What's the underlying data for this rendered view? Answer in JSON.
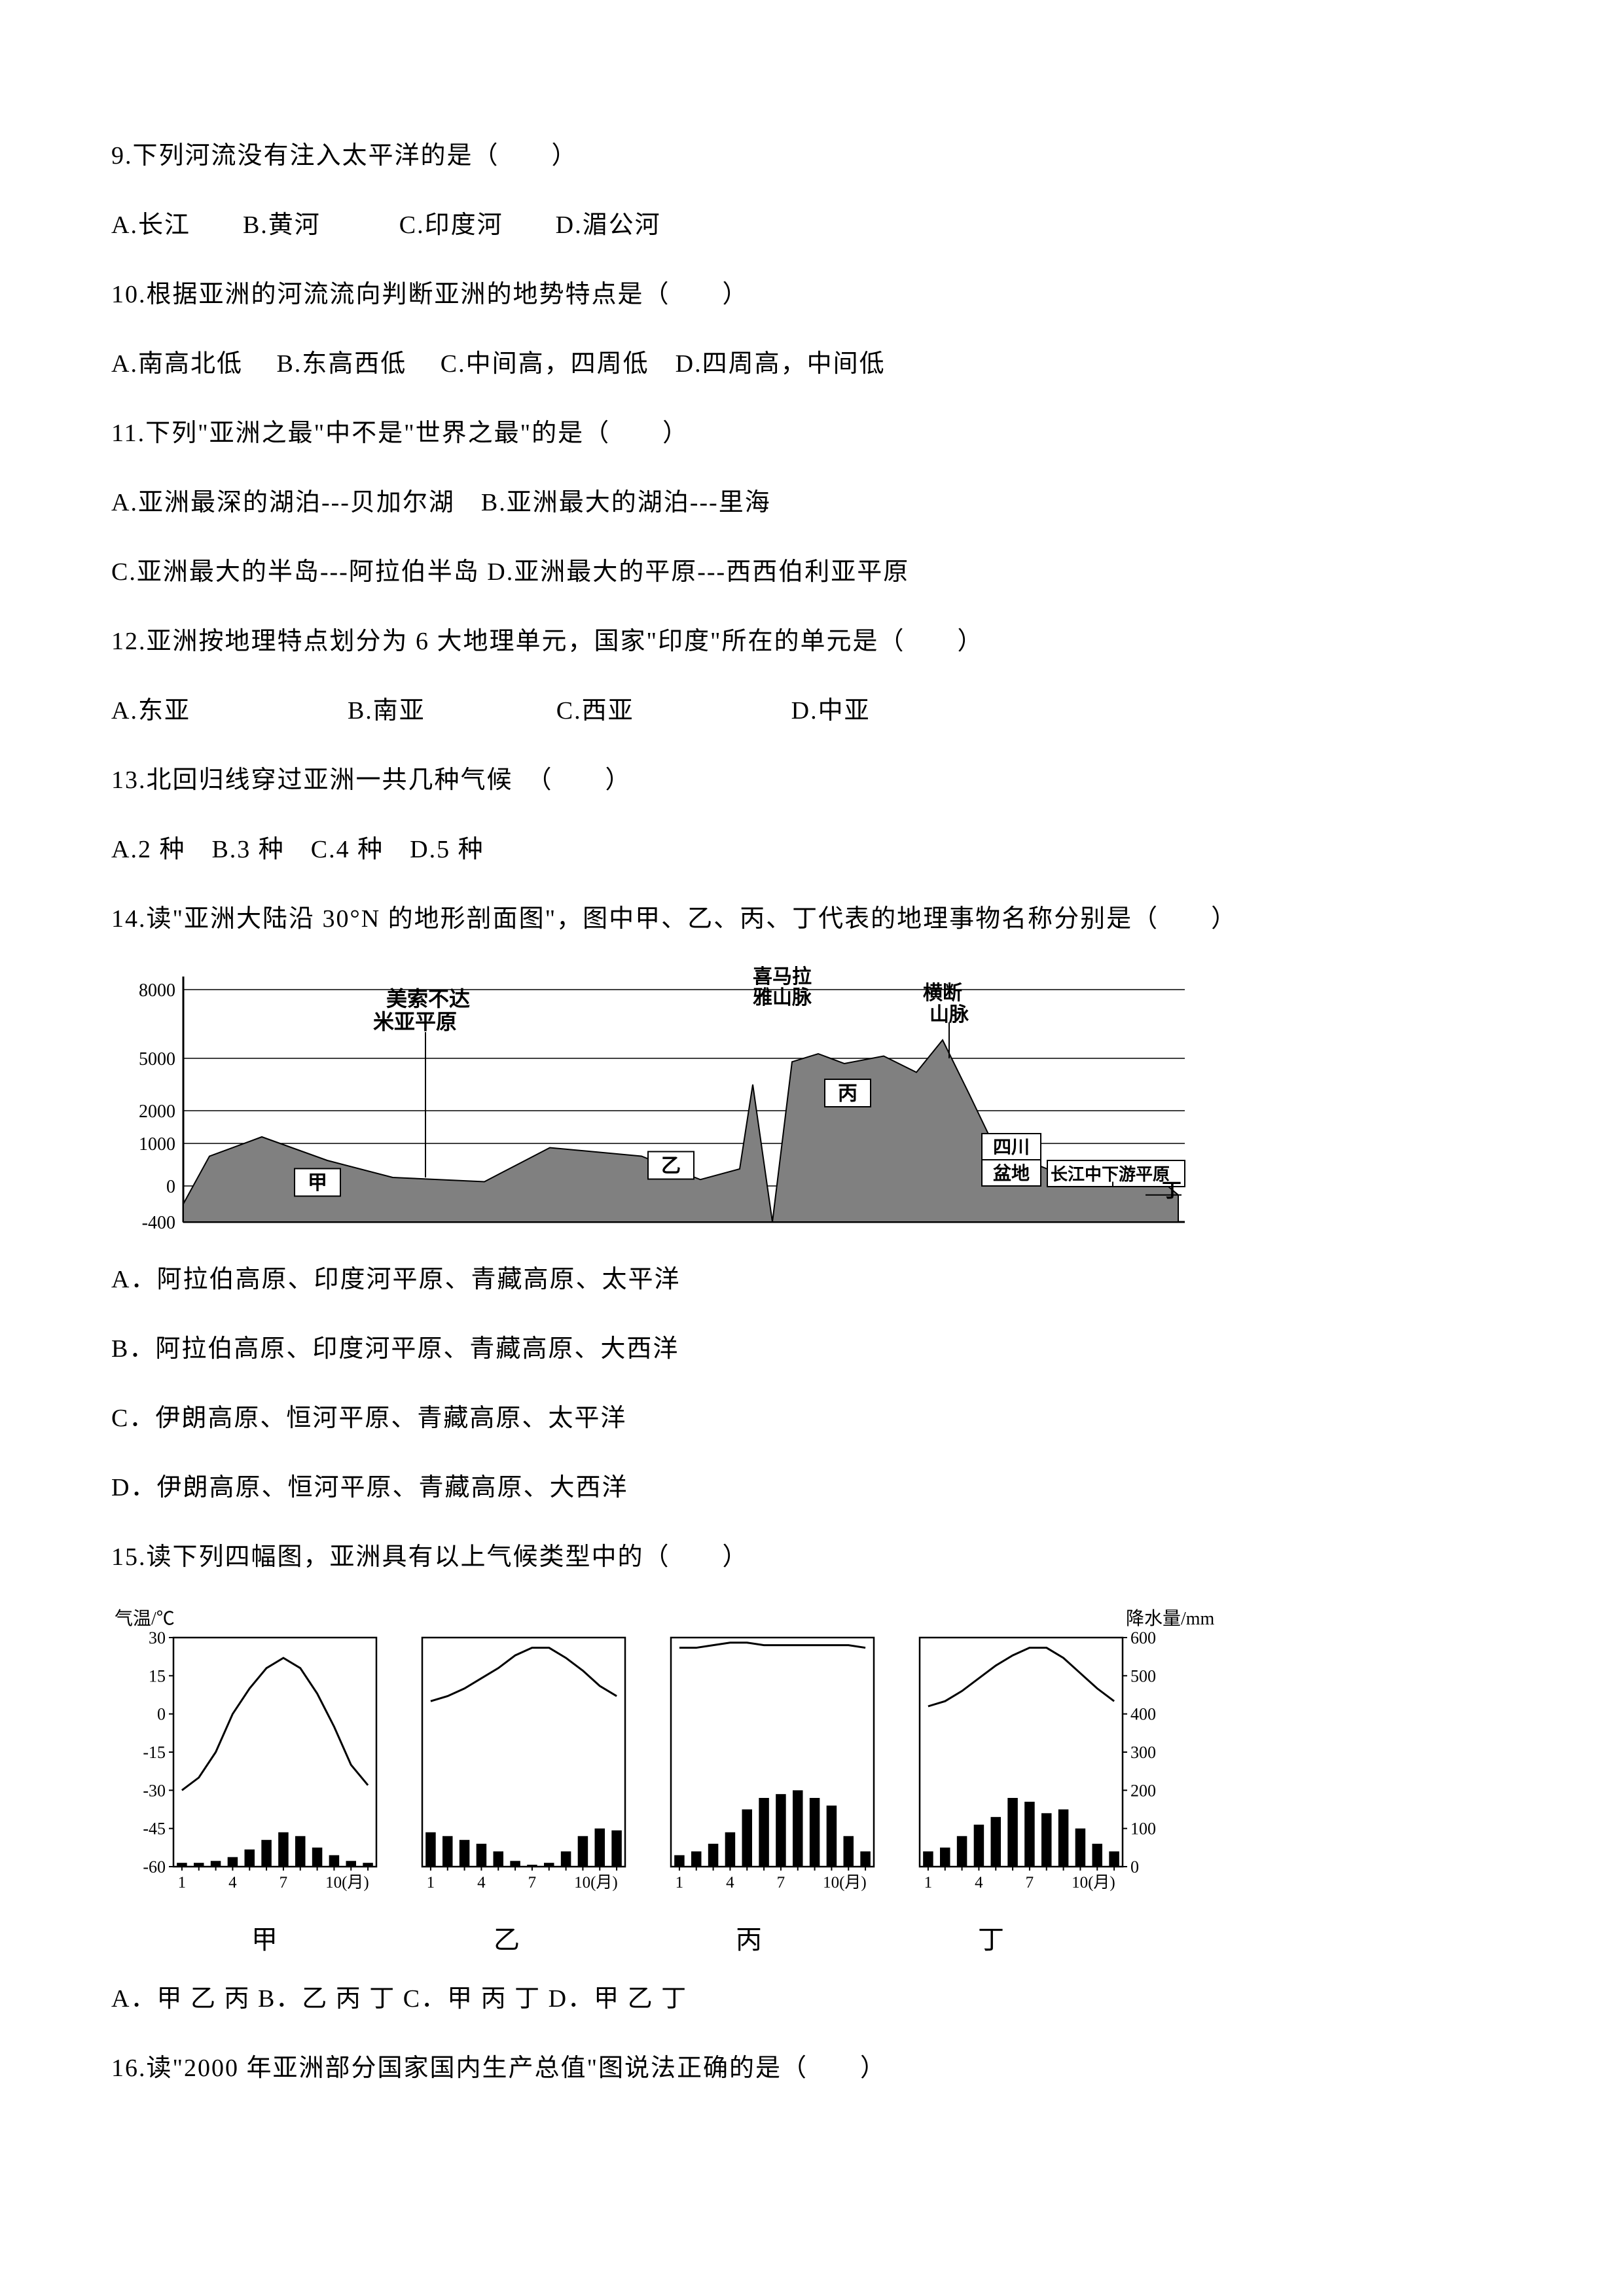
{
  "q9": {
    "text": "9.下列河流没有注入太平洋的是（　　）",
    "options": "A.长江　　B.黄河　　　C.印度河　　D.湄公河"
  },
  "q10": {
    "text": "10.根据亚洲的河流流向判断亚洲的地势特点是（　　）",
    "options": "A.南高北低　 B.东高西低　 C.中间高，四周低　D.四周高，中间低"
  },
  "q11": {
    "text": "11.下列\"亚洲之最\"中不是\"世界之最\"的是（　　）",
    "line1": "A.亚洲最深的湖泊---贝加尔湖　B.亚洲最大的湖泊---里海",
    "line2": "C.亚洲最大的半岛---阿拉伯半岛 D.亚洲最大的平原---西西伯利亚平原"
  },
  "q12": {
    "text": "12.亚洲按地理特点划分为 6 大地理单元，国家\"印度\"所在的单元是（　　）",
    "options": "A.东亚　　　　　　B.南亚　　　　　C.西亚　　　　　　D.中亚"
  },
  "q13": {
    "text": "13.北回归线穿过亚洲一共几种气候　（　　）",
    "options": "A.2 种　B.3 种　C.4 种　D.5 种"
  },
  "q14": {
    "text": "14.读\"亚洲大陆沿 30°N 的地形剖面图\"，图中甲、乙、丙、丁代表的地理事物名称分别是（　　）",
    "optA": "A．阿拉伯高原、印度河平原、青藏高原、太平洋",
    "optB": "B．阿拉伯高原、印度河平原、青藏高原、大西洋",
    "optC": "C．伊朗高原、恒河平原、青藏高原、太平洋",
    "optD": "D．伊朗高原、恒河平原、青藏高原、大西洋"
  },
  "q15": {
    "text": "15.读下列四幅图，亚洲具有以上气候类型中的（　　）",
    "labels": {
      "a": "甲",
      "b": "乙",
      "c": "丙",
      "d": "丁"
    },
    "options": "A．甲 乙 丙 B．乙 丙 丁 C．甲 丙 丁 D．甲 乙 丁"
  },
  "q16": {
    "text": "16.读\"2000 年亚洲部分国家国内生产总值\"图说法正确的是（　　）"
  },
  "profile_chart": {
    "yticks": [
      "8000",
      "5000",
      "2000",
      "1000",
      "0",
      "-400"
    ],
    "labels": {
      "meisuobuda": "美索不达",
      "miyapingyuan": "米亚平原",
      "ximalaya": "喜马拉",
      "yashan": "雅山脉",
      "hengduan": "横断",
      "shanmai": "山脉",
      "sichuan": "四川",
      "pendi": "盆地",
      "changjiang": "长江中下游平原",
      "jia": "甲",
      "yi": "乙",
      "bing": "丙",
      "ding": "丁"
    },
    "colors": {
      "bg": "#ffffff",
      "line": "#000000",
      "fill": "#808080",
      "label_bg": "#ffffff"
    }
  },
  "climate": {
    "yleft_label": "气温/℃",
    "yright_label": "降水量/mm",
    "yleft_ticks": [
      "30",
      "15",
      "0",
      "-15",
      "-30",
      "-45",
      "-60"
    ],
    "yright_ticks": [
      "600",
      "500",
      "400",
      "300",
      "200",
      "100",
      "0"
    ],
    "xticks": [
      "1",
      "4",
      "7",
      "10(月)"
    ],
    "colors": {
      "line": "#000000",
      "bar": "#000000",
      "bg": "#ffffff"
    },
    "charts": {
      "jia": {
        "temps": [
          -30,
          -25,
          -15,
          0,
          10,
          18,
          22,
          18,
          8,
          -5,
          -20,
          -28
        ],
        "precip": [
          10,
          10,
          15,
          25,
          45,
          70,
          90,
          80,
          50,
          30,
          15,
          10
        ]
      },
      "yi": {
        "temps": [
          5,
          7,
          10,
          14,
          18,
          23,
          26,
          26,
          22,
          17,
          11,
          7
        ],
        "precip": [
          90,
          80,
          70,
          60,
          40,
          15,
          5,
          10,
          40,
          80,
          100,
          95
        ]
      },
      "bing": {
        "temps": [
          26,
          26,
          27,
          28,
          28,
          27,
          27,
          27,
          27,
          27,
          27,
          26
        ],
        "precip": [
          30,
          40,
          60,
          90,
          150,
          180,
          190,
          200,
          180,
          160,
          80,
          40
        ]
      },
      "ding": {
        "temps": [
          3,
          5,
          9,
          14,
          19,
          23,
          26,
          26,
          22,
          16,
          10,
          5
        ],
        "precip": [
          40,
          50,
          80,
          110,
          130,
          180,
          170,
          140,
          150,
          100,
          60,
          40
        ]
      }
    }
  }
}
